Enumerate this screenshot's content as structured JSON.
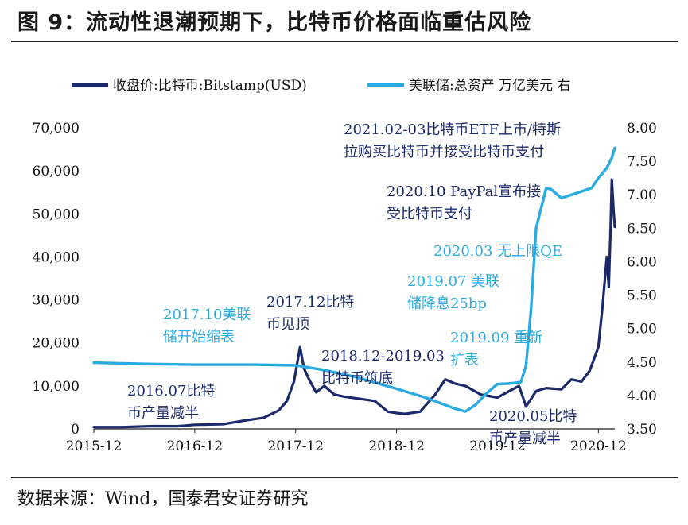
{
  "figure": {
    "title": "图 9：流动性退潮预期下，比特币价格面临重估风险",
    "source": "数据来源：Wind，国泰君安证券研究"
  },
  "colors": {
    "btc": "#1b2a6b",
    "fed": "#29abe2",
    "navy_text": "#1b2a6b",
    "light_text": "#29abe2"
  },
  "chart_data": {
    "type": "line",
    "title": "",
    "x_tick_labels": [
      "2015-12",
      "2016-12",
      "2017-12",
      "2018-12",
      "2019-12",
      "2020-12"
    ],
    "x_ticks": [
      2015.917,
      2016.917,
      2017.917,
      2018.917,
      2019.917,
      2020.917
    ],
    "xlim": [
      2015.917,
      2021.08
    ],
    "y_left": {
      "ticks": [
        0,
        10000,
        20000,
        30000,
        40000,
        50000,
        60000,
        70000
      ],
      "tick_labels": [
        "0",
        "10,000",
        "20,000",
        "30,000",
        "40,000",
        "50,000",
        "60,000",
        "70,000"
      ],
      "lim": [
        0,
        70000
      ]
    },
    "y_right": {
      "ticks": [
        3.5,
        4.0,
        4.5,
        5.0,
        5.5,
        6.0,
        6.5,
        7.0,
        7.5,
        8.0
      ],
      "tick_labels": [
        "3.50",
        "4.00",
        "4.50",
        "5.00",
        "5.50",
        "6.00",
        "6.50",
        "7.00",
        "7.50",
        "8.00"
      ],
      "lim": [
        3.5,
        8.0
      ]
    },
    "series": [
      {
        "name": "收盘价:比特币:Bitstamp(USD)",
        "axis": "left",
        "x": [
          2015.917,
          2016.2,
          2016.5,
          2016.75,
          2016.917,
          2017.2,
          2017.4,
          2017.6,
          2017.75,
          2017.83,
          2017.9,
          2017.96,
          2018.0,
          2018.05,
          2018.12,
          2018.2,
          2018.3,
          2018.4,
          2018.55,
          2018.7,
          2018.83,
          2018.917,
          2019.0,
          2019.15,
          2019.3,
          2019.4,
          2019.5,
          2019.6,
          2019.75,
          2019.917,
          2020.05,
          2020.13,
          2020.2,
          2020.3,
          2020.4,
          2020.55,
          2020.65,
          2020.75,
          2020.83,
          2020.917,
          2020.96,
          2021.0,
          2021.02,
          2021.04,
          2021.05,
          2021.07,
          2021.08
        ],
        "values": [
          430,
          420,
          650,
          620,
          960,
          1100,
          1900,
          2600,
          4300,
          6500,
          11000,
          19000,
          14000,
          11500,
          8500,
          10000,
          8000,
          7500,
          7000,
          6500,
          4000,
          3700,
          3500,
          4000,
          8000,
          11500,
          10500,
          10000,
          8000,
          7300,
          9000,
          10000,
          5200,
          8800,
          9500,
          9200,
          11500,
          11000,
          13500,
          19000,
          29000,
          40000,
          33000,
          48000,
          58000,
          50000,
          47000
        ]
      },
      {
        "name": "美联储:总资产 万亿美元 右",
        "axis": "right",
        "x": [
          2015.917,
          2016.5,
          2016.917,
          2017.5,
          2017.917,
          2018.2,
          2018.5,
          2018.917,
          2019.2,
          2019.5,
          2019.6,
          2019.7,
          2019.8,
          2019.917,
          2020.05,
          2020.15,
          2020.2,
          2020.25,
          2020.3,
          2020.4,
          2020.45,
          2020.55,
          2020.65,
          2020.75,
          2020.85,
          2020.917,
          2021.0,
          2021.05,
          2021.08
        ],
        "values": [
          4.49,
          4.47,
          4.46,
          4.46,
          4.45,
          4.38,
          4.28,
          4.1,
          3.97,
          3.8,
          3.76,
          3.86,
          4.02,
          4.17,
          4.18,
          4.2,
          4.45,
          5.3,
          6.5,
          7.1,
          7.08,
          6.95,
          7.0,
          7.05,
          7.1,
          7.25,
          7.4,
          7.55,
          7.7
        ]
      }
    ],
    "legend_position": "top",
    "annotations": [
      {
        "id": "a-2015",
        "lines": [
          "2016.07比特",
          "币产量减半"
        ],
        "tone": "navy"
      },
      {
        "id": "a-2017-10",
        "lines": [
          "2017.10美联",
          "储开始缩表"
        ],
        "tone": "light"
      },
      {
        "id": "a-2017-12",
        "lines": [
          "2017.12比特",
          "币见顶"
        ],
        "tone": "navy"
      },
      {
        "id": "a-2018-12",
        "lines": [
          "2018.12-2019.03",
          "比特币筑底"
        ],
        "tone": "navy"
      },
      {
        "id": "a-2019-07",
        "lines": [
          "2019.07 美联",
          "储降息25bp"
        ],
        "tone": "light"
      },
      {
        "id": "a-2019-09",
        "lines": [
          "2019.09 重新",
          "扩表"
        ],
        "tone": "light"
      },
      {
        "id": "a-2020-03",
        "lines": [
          "2020.03 无上限QE"
        ],
        "tone": "light"
      },
      {
        "id": "a-2020-05",
        "lines": [
          "2020.05比特",
          "币产量减半"
        ],
        "tone": "navy"
      },
      {
        "id": "a-2020-10",
        "lines": [
          "2020.10 PayPal宣布接",
          "受比特币支付"
        ],
        "tone": "navy"
      },
      {
        "id": "a-2021-02",
        "lines": [
          "2021.02-03比特币ETF上市/特斯",
          "拉购买比特币并接受比特币支付"
        ],
        "tone": "navy"
      }
    ]
  }
}
